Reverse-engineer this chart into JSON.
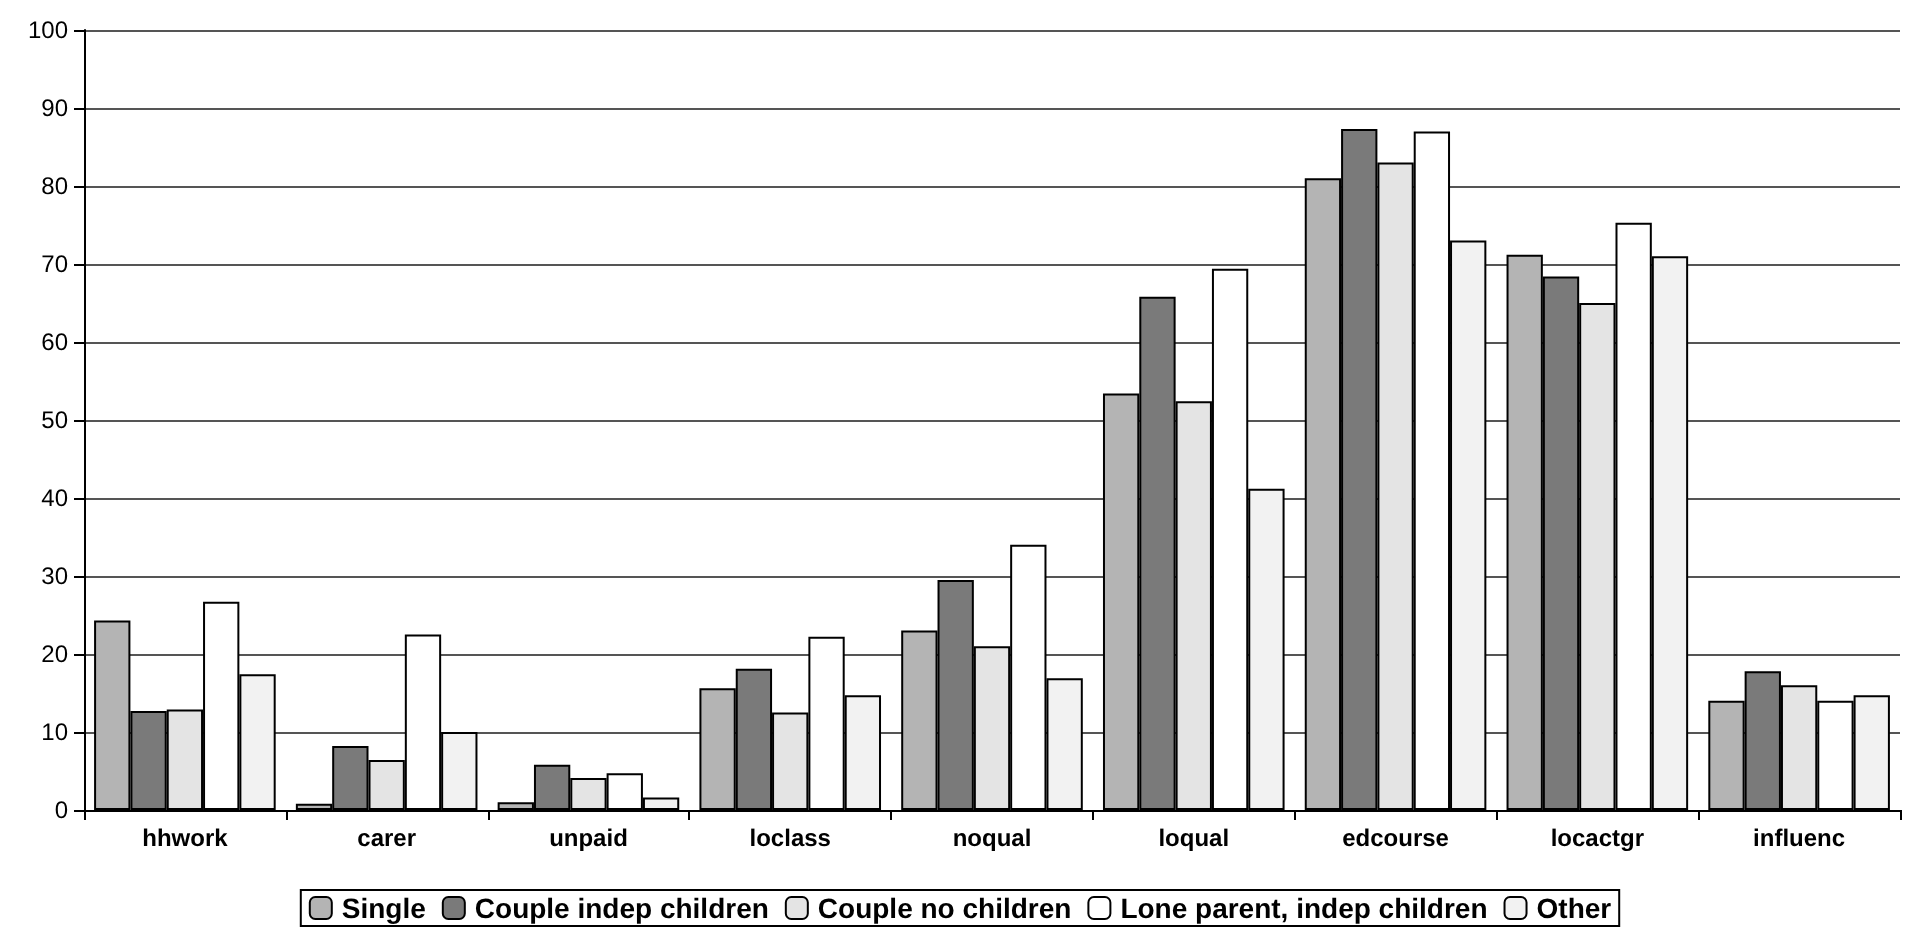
{
  "chart_data": {
    "type": "bar",
    "categories": [
      "hhwork",
      "carer",
      "unpaid",
      "loclass",
      "noqual",
      "loqual",
      "edcourse",
      "locactgr",
      "influenc"
    ],
    "series": [
      {
        "name": "Single",
        "color": "#b4b4b4",
        "values": [
          24.3,
          0.8,
          1,
          15.6,
          23,
          53.4,
          81,
          71.2,
          14
        ]
      },
      {
        "name": "Couple indep children",
        "color": "#7a7a7a",
        "values": [
          12.7,
          8.2,
          5.8,
          18.1,
          29.5,
          65.8,
          87.3,
          68.4,
          17.8
        ]
      },
      {
        "name": "Couple no children",
        "color": "#e4e4e4",
        "values": [
          12.9,
          6.4,
          4.1,
          12.5,
          21,
          52.4,
          83,
          65,
          16
        ]
      },
      {
        "name": "Lone parent, indep children",
        "color": "#ffffff",
        "values": [
          26.7,
          22.5,
          4.7,
          22.2,
          34,
          69.4,
          87,
          75.3,
          14
        ]
      },
      {
        "name": "Other",
        "color": "#f2f2f2",
        "values": [
          17.4,
          10,
          1.6,
          14.7,
          16.9,
          41.2,
          73,
          71,
          14.7
        ]
      }
    ],
    "ylim": [
      0,
      100
    ],
    "yticks": [
      0,
      10,
      20,
      30,
      40,
      50,
      60,
      70,
      80,
      90,
      100
    ],
    "grid": "y",
    "legend": "bottom"
  }
}
